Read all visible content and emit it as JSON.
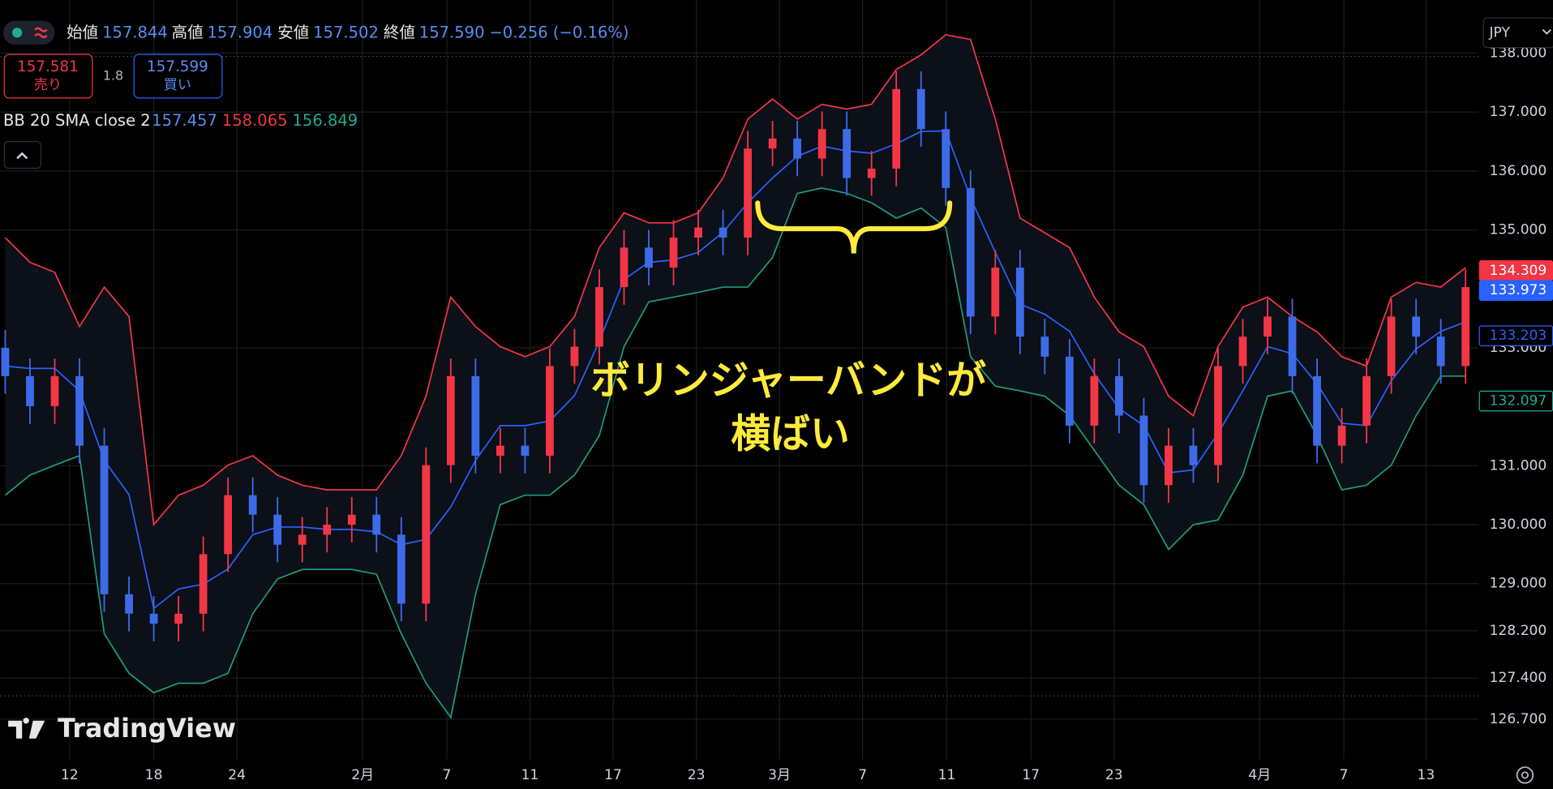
{
  "header": {
    "ohlc": [
      {
        "label": "始値",
        "value": "157.844"
      },
      {
        "label": "高値",
        "value": "157.904"
      },
      {
        "label": "安値",
        "value": "157.502"
      },
      {
        "label": "終値",
        "value": "157.590"
      }
    ],
    "change": "−0.256 (−0.16%)",
    "sell": {
      "price": "157.581",
      "label": "売り"
    },
    "spread": "1.8",
    "buy": {
      "price": "157.599",
      "label": "買い"
    },
    "indicator": {
      "name": "BB 20 SMA close 2",
      "values": [
        {
          "text": "157.457",
          "color": "#5b8def"
        },
        {
          "text": "158.065",
          "color": "#f23645"
        },
        {
          "text": "156.849",
          "color": "#22ab94"
        }
      ]
    },
    "currency": "JPY",
    "watermark": "TradingView"
  },
  "chart_data": {
    "type": "candlestick",
    "annotation": [
      "ボリンジャーバンドが",
      "横ばい"
    ],
    "ylim": [
      126.02,
      138.9
    ],
    "yticks": [
      {
        "value": 138,
        "label": "138.000"
      },
      {
        "value": 137,
        "label": "137.000"
      },
      {
        "value": 136,
        "label": "136.000"
      },
      {
        "value": 135,
        "label": "135.000"
      },
      {
        "value": 133,
        "label": "133.000"
      },
      {
        "value": 131,
        "label": "131.000"
      },
      {
        "value": 130,
        "label": "130.000"
      },
      {
        "value": 129,
        "label": "129.000"
      },
      {
        "value": 128.2,
        "label": "128.200"
      },
      {
        "value": 127.4,
        "label": "127.400"
      },
      {
        "value": 126.7,
        "label": "126.700"
      }
    ],
    "xticks": [
      {
        "value": 2.6,
        "label": "12"
      },
      {
        "value": 6,
        "label": "18"
      },
      {
        "value": 9.36,
        "label": "24"
      },
      {
        "value": 14.44,
        "label": "2月"
      },
      {
        "value": 17.84,
        "label": "7"
      },
      {
        "value": 21.2,
        "label": "11"
      },
      {
        "value": 24.56,
        "label": "17"
      },
      {
        "value": 27.92,
        "label": "23"
      },
      {
        "value": 31.28,
        "label": "3月"
      },
      {
        "value": 34.64,
        "label": "7"
      },
      {
        "value": 38.04,
        "label": "11"
      },
      {
        "value": 41.44,
        "label": "17"
      },
      {
        "value": 44.8,
        "label": "23"
      },
      {
        "value": 50.68,
        "label": "4月"
      },
      {
        "value": 54.08,
        "label": "7"
      },
      {
        "value": 57.4,
        "label": "13"
      }
    ],
    "grid": true,
    "up_color": "#f23645",
    "down_color": "#3d6be8",
    "open": [
      133.0,
      132.52,
      132.01,
      132.52,
      131.34,
      128.82,
      128.49,
      128.32,
      128.49,
      129.5,
      130.5,
      130.17,
      129.66,
      129.83,
      130.0,
      130.17,
      129.83,
      128.66,
      131.01,
      132.52,
      131.17,
      131.34,
      131.17,
      132.69,
      133.02,
      134.03,
      134.7,
      134.36,
      134.87,
      135.04,
      134.87,
      136.38,
      136.55,
      136.21,
      136.71,
      135.88,
      136.04,
      137.39,
      136.71,
      135.71,
      133.53,
      134.36,
      133.19,
      132.85,
      131.68,
      132.52,
      131.85,
      130.67,
      131.34,
      131.01,
      132.69,
      133.19,
      133.53,
      132.52,
      131.34,
      131.68,
      132.52,
      133.53,
      133.19,
      132.69
    ],
    "high": [
      133.3,
      132.82,
      132.82,
      132.82,
      131.64,
      129.12,
      128.79,
      128.79,
      129.8,
      130.8,
      130.8,
      130.47,
      130.13,
      130.3,
      130.47,
      130.47,
      130.13,
      131.31,
      132.82,
      132.82,
      131.64,
      131.64,
      132.99,
      133.32,
      134.33,
      135.0,
      135.0,
      135.17,
      135.34,
      135.34,
      136.68,
      136.85,
      136.85,
      137.01,
      137.01,
      136.34,
      137.69,
      137.69,
      137.01,
      136.01,
      134.66,
      134.66,
      133.49,
      133.15,
      132.82,
      132.82,
      132.15,
      131.64,
      131.64,
      132.99,
      133.49,
      133.83,
      133.83,
      132.82,
      131.98,
      132.82,
      133.83,
      133.83,
      133.49,
      134.33
    ],
    "low": [
      132.22,
      131.71,
      131.71,
      131.04,
      128.52,
      128.19,
      128.02,
      128.02,
      128.19,
      129.2,
      129.87,
      129.36,
      129.36,
      129.53,
      129.7,
      129.53,
      128.36,
      128.36,
      130.71,
      130.87,
      130.87,
      130.87,
      130.87,
      132.39,
      132.72,
      133.73,
      134.06,
      134.06,
      134.57,
      134.57,
      134.57,
      136.08,
      135.91,
      135.91,
      135.58,
      135.58,
      135.74,
      136.41,
      135.41,
      133.23,
      133.23,
      132.89,
      132.55,
      131.38,
      131.38,
      131.55,
      130.37,
      130.37,
      130.71,
      130.71,
      132.39,
      132.89,
      132.22,
      131.04,
      131.04,
      131.38,
      132.22,
      132.89,
      132.39,
      132.39
    ],
    "close": [
      132.52,
      132.01,
      132.52,
      131.34,
      128.82,
      128.49,
      128.32,
      128.49,
      129.5,
      130.5,
      130.17,
      129.66,
      129.83,
      130.0,
      130.17,
      129.83,
      128.66,
      131.01,
      132.52,
      131.17,
      131.34,
      131.17,
      132.69,
      133.02,
      134.03,
      134.7,
      134.36,
      134.87,
      135.04,
      134.87,
      136.38,
      136.55,
      136.21,
      136.71,
      135.88,
      136.04,
      137.39,
      136.71,
      135.71,
      133.53,
      134.36,
      133.19,
      132.85,
      131.68,
      132.52,
      131.85,
      130.67,
      131.34,
      131.01,
      132.69,
      133.19,
      133.53,
      132.52,
      131.34,
      131.68,
      132.52,
      133.53,
      133.19,
      132.69,
      134.03
    ],
    "series": [
      {
        "color": "#f23645",
        "values": [
          134.87,
          134.45,
          134.28,
          133.36,
          134.03,
          133.53,
          130.0,
          130.5,
          130.67,
          131.01,
          131.17,
          130.84,
          130.67,
          130.59,
          130.59,
          130.59,
          131.17,
          132.18,
          133.86,
          133.36,
          133.02,
          132.85,
          133.02,
          133.53,
          134.7,
          135.29,
          135.12,
          135.12,
          135.29,
          135.88,
          136.88,
          137.22,
          136.88,
          137.13,
          137.05,
          137.13,
          137.72,
          137.97,
          138.31,
          138.23,
          136.88,
          135.2,
          134.95,
          134.7,
          133.86,
          133.27,
          133.02,
          132.18,
          131.85,
          133.02,
          133.69,
          133.86,
          133.53,
          133.27,
          132.85,
          132.69,
          133.86,
          134.11,
          134.03,
          134.36
        ]
      },
      {
        "color": "#2962ff",
        "values": [
          132.69,
          132.65,
          132.65,
          132.27,
          131.09,
          130.51,
          128.58,
          128.91,
          128.99,
          129.25,
          129.83,
          129.96,
          129.96,
          129.92,
          129.92,
          129.88,
          129.66,
          129.75,
          130.3,
          131.09,
          131.68,
          131.68,
          131.76,
          132.19,
          133.11,
          134.16,
          134.45,
          134.49,
          134.62,
          134.96,
          135.46,
          135.88,
          136.25,
          136.42,
          136.34,
          136.3,
          136.46,
          136.67,
          136.68,
          135.54,
          134.62,
          133.74,
          133.57,
          133.28,
          132.56,
          131.97,
          131.68,
          130.88,
          130.93,
          131.55,
          132.27,
          133.02,
          132.9,
          132.39,
          131.72,
          131.68,
          132.44,
          132.98,
          133.28,
          133.44
        ]
      },
      {
        "color": "#1e9c7a",
        "values": [
          130.5,
          130.84,
          131.01,
          131.17,
          128.15,
          127.48,
          127.15,
          127.31,
          127.31,
          127.48,
          128.49,
          129.08,
          129.24,
          129.24,
          129.24,
          129.16,
          128.15,
          127.31,
          126.73,
          128.82,
          130.34,
          130.5,
          130.5,
          130.84,
          131.51,
          133.02,
          133.78,
          133.86,
          133.94,
          134.03,
          134.03,
          134.53,
          135.62,
          135.71,
          135.62,
          135.46,
          135.2,
          135.37,
          135.04,
          132.85,
          132.35,
          132.27,
          132.18,
          131.85,
          131.26,
          130.67,
          130.34,
          129.58,
          130.0,
          130.08,
          130.84,
          132.18,
          132.27,
          131.51,
          130.59,
          130.67,
          131.01,
          131.85,
          132.52,
          132.52
        ]
      }
    ],
    "price_markers": [
      {
        "value": 134.309,
        "color": "#f23645",
        "filled": true
      },
      {
        "value": 133.973,
        "color": "#2962ff",
        "filled": true
      },
      {
        "value": 133.203,
        "color": "#2962ff",
        "filled": false
      },
      {
        "value": 132.097,
        "color": "#22ab94",
        "filled": false
      }
    ]
  }
}
